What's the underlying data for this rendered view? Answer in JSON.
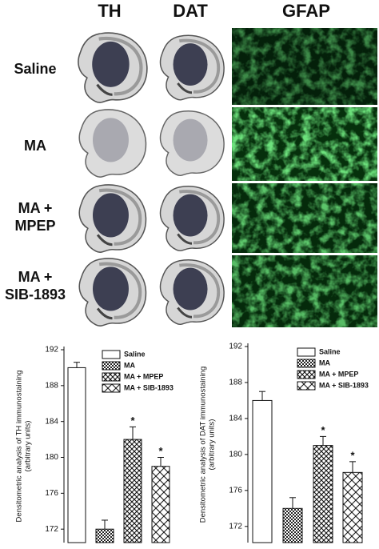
{
  "figure": {
    "columns": [
      "TH",
      "DAT",
      "GFAP"
    ],
    "rows": [
      [
        "Saline"
      ],
      [
        "MA"
      ],
      [
        "MA +",
        "MPEP"
      ],
      [
        "MA +",
        "SIB-1893"
      ]
    ]
  },
  "chart_data": [
    {
      "type": "bar",
      "ylabel": [
        "Densitometric analysis of TH immunostaining",
        "(arbitrary units)"
      ],
      "ylim": [
        170.5,
        192
      ],
      "yticks": [
        172,
        176,
        180,
        184,
        188,
        192
      ],
      "series": [
        {
          "name": "Saline",
          "hatch": "none",
          "values": [
            190
          ],
          "errors": [
            0.6
          ]
        },
        {
          "name": "MA",
          "hatch": "dots",
          "values": [
            172
          ],
          "errors": [
            1
          ]
        },
        {
          "name": "MA + MPEP",
          "hatch": "cross",
          "values": [
            182
          ],
          "errors": [
            1.4
          ],
          "significance": "*"
        },
        {
          "name": "MA + SIB-1893",
          "hatch": "wide",
          "values": [
            179
          ],
          "errors": [
            1
          ],
          "significance": "*"
        }
      ]
    },
    {
      "type": "bar",
      "ylabel": [
        "Densitometric analysis of DAT immunostaining",
        "(arbitrary units)"
      ],
      "ylim": [
        170.2,
        192
      ],
      "yticks": [
        172,
        176,
        180,
        184,
        188,
        192
      ],
      "series": [
        {
          "name": "Saline",
          "hatch": "none",
          "values": [
            186
          ],
          "errors": [
            1
          ]
        },
        {
          "name": "MA",
          "hatch": "dots",
          "values": [
            174
          ],
          "errors": [
            1.2
          ]
        },
        {
          "name": "MA + MPEP",
          "hatch": "cross",
          "values": [
            181
          ],
          "errors": [
            1
          ],
          "significance": "*"
        },
        {
          "name": "MA + SIB-1893",
          "hatch": "wide",
          "values": [
            178
          ],
          "errors": [
            1.2
          ],
          "significance": "*"
        }
      ]
    }
  ]
}
